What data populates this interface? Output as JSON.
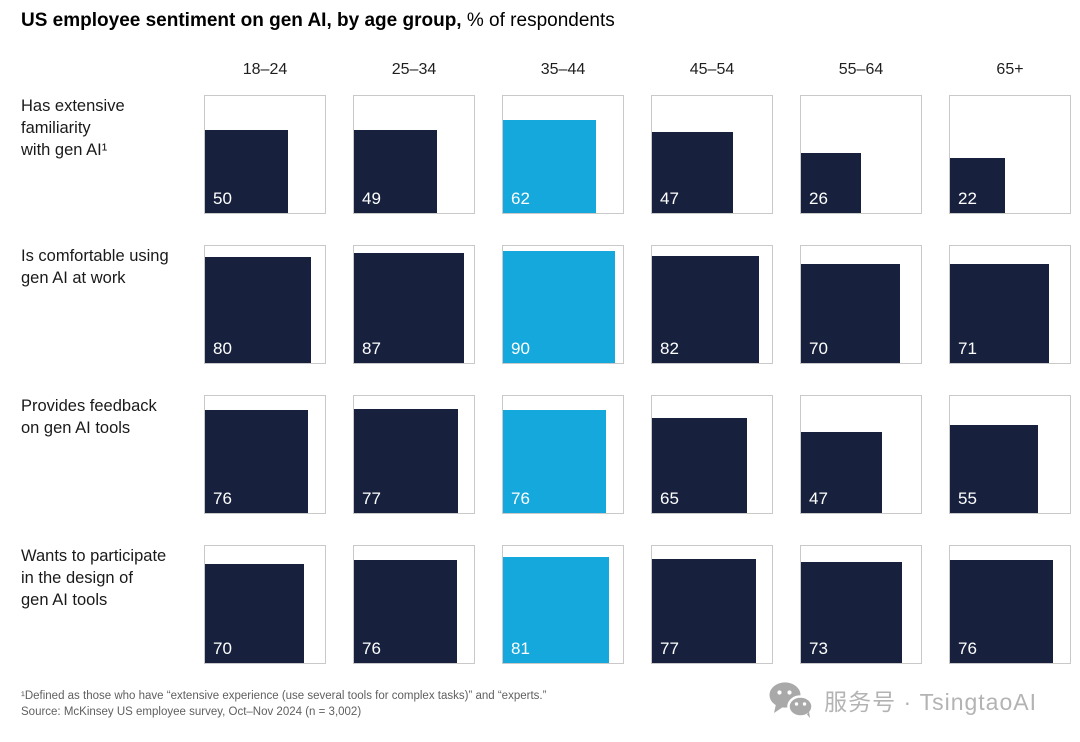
{
  "title": {
    "main": "US employee sentiment on gen AI, by age group,",
    "unit": "% of respondents"
  },
  "footnotes": {
    "definition": "¹Defined as those who have “extensive experience (use several tools for complex tasks)” and “experts.”",
    "source": "Source: McKinsey US employee survey, Oct–Nov 2024 (n = 3,002)"
  },
  "watermark": {
    "icon": "wechat-icon",
    "text": "服务号 · TsingtaoAI"
  },
  "chart_data": {
    "type": "heatmap",
    "subtype": "unit-square-grid",
    "title": "US employee sentiment on gen AI, by age group",
    "unit_label": "% of respondents",
    "categories": [
      "18–24",
      "25–34",
      "35–44",
      "45–54",
      "55–64",
      "65+"
    ],
    "highlight_index": 2,
    "highlight_category": "35–44",
    "rows": [
      {
        "label": "Has extensive familiarity with gen AI¹",
        "label_lines": [
          "Has extensive",
          "familiarity",
          "with gen AI¹"
        ],
        "values": [
          50,
          49,
          62,
          47,
          26,
          22
        ]
      },
      {
        "label": "Is comfortable using gen AI at work",
        "label_lines": [
          "Is comfortable using",
          "gen AI at work"
        ],
        "values": [
          80,
          87,
          90,
          82,
          70,
          71
        ]
      },
      {
        "label": "Provides feedback on gen AI tools",
        "label_lines": [
          "Provides feedback",
          "on gen AI tools"
        ],
        "values": [
          76,
          77,
          76,
          65,
          47,
          55
        ]
      },
      {
        "label": "Wants to participate in the design of gen AI tools",
        "label_lines": [
          "Wants to participate",
          "in the design of",
          "gen AI tools"
        ],
        "values": [
          70,
          76,
          81,
          77,
          73,
          76
        ]
      }
    ],
    "value_range": [
      0,
      100
    ],
    "scale_note": "square area within each outlined cell is proportional to the value (% of respondents)",
    "colors": {
      "default_bar": "#17213e",
      "highlight_bar": "#14a8dc",
      "box_border": "#c9c9c9",
      "value_label": "#ffffff"
    }
  }
}
